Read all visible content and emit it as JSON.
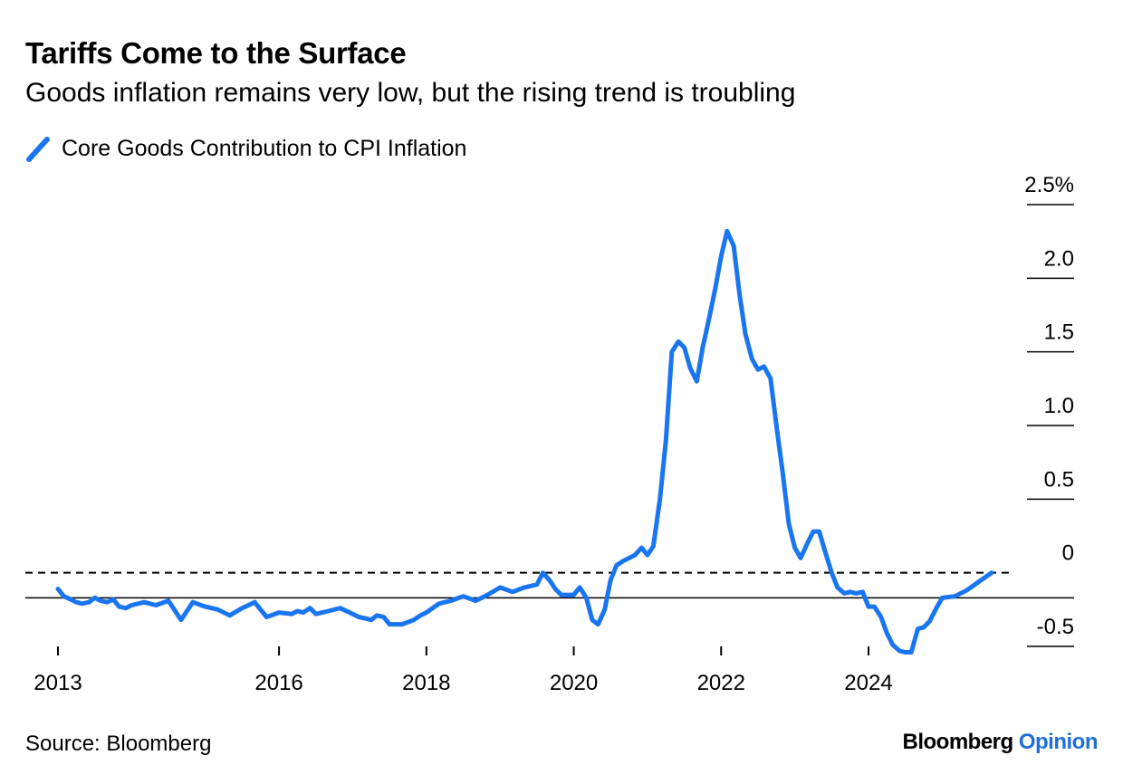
{
  "header": {
    "title": "Tariffs Come to the Surface",
    "subtitle": "Goods inflation remains very low, but the rising trend is troubling"
  },
  "legend": {
    "label": "Core Goods Contribution to CPI Inflation",
    "color": "#1a75f0"
  },
  "footer": {
    "source": "Source: Bloomberg",
    "brand_main": "Bloomberg",
    "brand_accent": "Opinion",
    "brand_accent_color": "#1f6fd8"
  },
  "chart_data": {
    "type": "line",
    "title": "Tariffs Come to the Surface",
    "subtitle": "Goods inflation remains very low, but the rising trend is troubling",
    "xlabel": "",
    "ylabel": "",
    "xlim": [
      2012.9,
      2026.5
    ],
    "ylim": [
      -0.5,
      2.5
    ],
    "y_ticks": [
      {
        "value": 2.5,
        "label": "2.5%"
      },
      {
        "value": 2.0,
        "label": "2.0"
      },
      {
        "value": 1.5,
        "label": "1.5"
      },
      {
        "value": 1.0,
        "label": "1.0"
      },
      {
        "value": 0.5,
        "label": "0.5"
      },
      {
        "value": 0.0,
        "label": "0"
      },
      {
        "value": -0.5,
        "label": "-0.5"
      }
    ],
    "x_ticks": [
      {
        "value": 2013,
        "label": "2013"
      },
      {
        "value": 2016,
        "label": "2016"
      },
      {
        "value": 2018,
        "label": "2018"
      },
      {
        "value": 2020,
        "label": "2020"
      },
      {
        "value": 2022,
        "label": "2022"
      },
      {
        "value": 2024,
        "label": "2024"
      }
    ],
    "reference_lines": [
      {
        "name": "zero-dashed",
        "value": 0.0,
        "style": "dashed"
      },
      {
        "name": "base-solid",
        "value": -0.17,
        "style": "solid"
      }
    ],
    "series": [
      {
        "name": "Core Goods Contribution to CPI Inflation",
        "color": "#1a75f0",
        "x": [
          2013.0,
          2013.08,
          2013.17,
          2013.25,
          2013.33,
          2013.42,
          2013.5,
          2013.58,
          2013.67,
          2013.75,
          2013.83,
          2013.92,
          2014.0,
          2014.17,
          2014.33,
          2014.5,
          2014.67,
          2014.83,
          2015.0,
          2015.17,
          2015.33,
          2015.5,
          2015.67,
          2015.83,
          2016.0,
          2016.17,
          2016.25,
          2016.33,
          2016.42,
          2016.5,
          2016.67,
          2016.83,
          2017.0,
          2017.08,
          2017.17,
          2017.25,
          2017.33,
          2017.42,
          2017.5,
          2017.67,
          2017.83,
          2017.92,
          2018.0,
          2018.17,
          2018.33,
          2018.5,
          2018.67,
          2018.83,
          2019.0,
          2019.17,
          2019.33,
          2019.5,
          2019.58,
          2019.67,
          2019.75,
          2019.83,
          2020.0,
          2020.08,
          2020.17,
          2020.25,
          2020.33,
          2020.42,
          2020.5,
          2020.58,
          2020.67,
          2020.83,
          2020.92,
          2021.0,
          2021.08,
          2021.17,
          2021.25,
          2021.33,
          2021.42,
          2021.5,
          2021.58,
          2021.67,
          2021.75,
          2021.83,
          2021.92,
          2022.0,
          2022.08,
          2022.17,
          2022.25,
          2022.33,
          2022.42,
          2022.5,
          2022.58,
          2022.67,
          2022.75,
          2022.83,
          2022.92,
          2023.0,
          2023.08,
          2023.17,
          2023.25,
          2023.33,
          2023.42,
          2023.5,
          2023.58,
          2023.67,
          2023.75,
          2023.83,
          2023.92,
          2024.0,
          2024.08,
          2024.17,
          2024.25,
          2024.33,
          2024.42,
          2024.5,
          2024.58,
          2024.67,
          2024.75,
          2024.83,
          2024.92,
          2025.0,
          2025.17,
          2025.33,
          2025.5,
          2025.67
        ],
        "values": [
          -0.11,
          -0.16,
          -0.18,
          -0.2,
          -0.21,
          -0.2,
          -0.17,
          -0.19,
          -0.2,
          -0.18,
          -0.23,
          -0.24,
          -0.22,
          -0.2,
          -0.22,
          -0.19,
          -0.32,
          -0.2,
          -0.23,
          -0.25,
          -0.29,
          -0.24,
          -0.2,
          -0.3,
          -0.27,
          -0.28,
          -0.26,
          -0.27,
          -0.24,
          -0.28,
          -0.26,
          -0.24,
          -0.28,
          -0.3,
          -0.31,
          -0.32,
          -0.29,
          -0.3,
          -0.35,
          -0.35,
          -0.32,
          -0.29,
          -0.27,
          -0.21,
          -0.19,
          -0.16,
          -0.19,
          -0.15,
          -0.1,
          -0.13,
          -0.1,
          -0.08,
          0.0,
          -0.05,
          -0.11,
          -0.15,
          -0.15,
          -0.1,
          -0.17,
          -0.32,
          -0.35,
          -0.25,
          -0.05,
          0.05,
          0.08,
          0.12,
          0.17,
          0.12,
          0.18,
          0.5,
          0.9,
          1.5,
          1.57,
          1.53,
          1.39,
          1.3,
          1.53,
          1.71,
          1.93,
          2.15,
          2.32,
          2.22,
          1.89,
          1.62,
          1.45,
          1.38,
          1.4,
          1.32,
          1.0,
          0.7,
          0.33,
          0.17,
          0.1,
          0.2,
          0.28,
          0.28,
          0.13,
          0.0,
          -0.1,
          -0.14,
          -0.13,
          -0.14,
          -0.13,
          -0.23,
          -0.23,
          -0.3,
          -0.41,
          -0.49,
          -0.53,
          -0.54,
          -0.54,
          -0.38,
          -0.37,
          -0.33,
          -0.24,
          -0.17,
          -0.16,
          -0.12,
          -0.06,
          0.0
        ]
      }
    ]
  }
}
